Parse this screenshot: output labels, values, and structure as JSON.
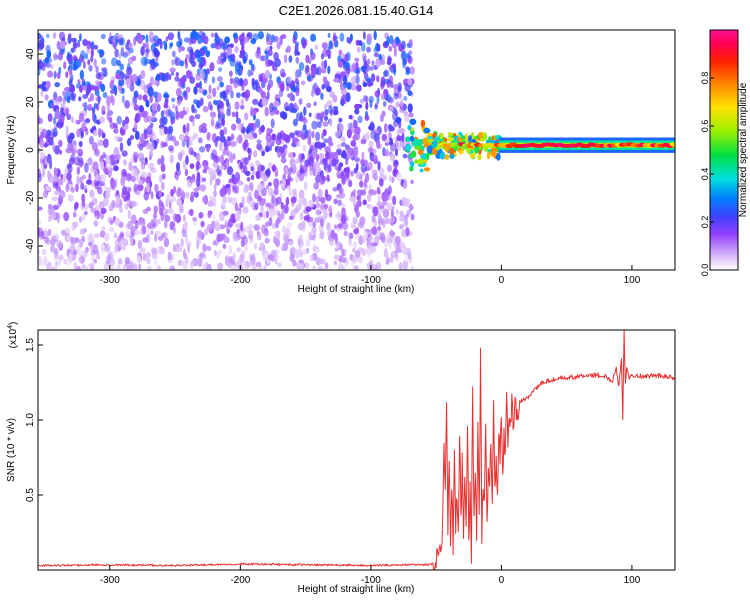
{
  "figure_title": "C2E1.2026.081.15.40.G14",
  "chart_data": [
    {
      "type": "heatmap",
      "title": "C2E1.2026.081.15.40.G14",
      "xlabel": "Height of straight line (km)",
      "ylabel": "Frequency (Hz)",
      "xlim": [
        -355,
        133
      ],
      "ylim": [
        -50,
        50
      ],
      "xticks": [
        -300,
        -200,
        -100,
        0,
        100
      ],
      "yticks": [
        -40,
        -20,
        0,
        20,
        40
      ],
      "grid": false,
      "colorbar": {
        "label": "Normalized spectral amplitude",
        "range": [
          0,
          1
        ],
        "ticks": [
          0.0,
          0.2,
          0.4,
          0.6,
          0.8
        ],
        "colors": [
          "#ffffff",
          "#d8b8f8",
          "#9040ff",
          "#4040ff",
          "#0080ff",
          "#00e0e0",
          "#00e040",
          "#a0f000",
          "#ffe000",
          "#ff8000",
          "#ff2000",
          "#ff0050",
          "#ff1090"
        ]
      },
      "regions": [
        {
          "name": "noise",
          "x_range": [
            -355,
            -68
          ],
          "y_range": [
            -50,
            48
          ],
          "amplitude_range": [
            0.0,
            0.3
          ]
        },
        {
          "name": "signal-line",
          "x_range": [
            -70,
            133
          ],
          "center_frequency_hz": 2,
          "amplitude_range": [
            0.3,
            1.0
          ]
        }
      ]
    },
    {
      "type": "line",
      "xlabel": "Height of straight line (km)",
      "ylabel": "SNR (10 * v/v)",
      "y_scale_label": "(x10",
      "y_scale_exponent": "4",
      "xlim": [
        -355,
        133
      ],
      "ylim": [
        0,
        1.6
      ],
      "xticks": [
        -300,
        -200,
        -100,
        0,
        100
      ],
      "yticks": [
        0.5,
        1.0,
        1.5
      ],
      "grid": false,
      "series": [
        {
          "color": "#e83030",
          "x": [
            -355,
            -300,
            -250,
            -200,
            -150,
            -100,
            -70,
            -55,
            -50,
            -47,
            -45,
            -44,
            -43,
            -42,
            -41,
            -40,
            -39,
            -38,
            -37,
            -36,
            -35,
            -34,
            -33,
            -32,
            -31,
            -30,
            -29,
            -28,
            -27,
            -26,
            -25,
            -24,
            -23,
            -22,
            -21,
            -20,
            -19,
            -18,
            -17,
            -16,
            -15,
            -14,
            -13,
            -12,
            -11,
            -10,
            -9,
            -8,
            -7,
            -6,
            -5,
            -4,
            -3,
            -2,
            -1,
            0,
            1,
            2,
            3,
            4,
            5,
            6,
            7,
            8,
            9,
            10,
            12,
            15,
            20,
            25,
            30,
            35,
            40,
            50,
            60,
            70,
            80,
            85,
            88,
            90,
            92,
            93,
            94,
            95,
            96,
            98,
            100,
            110,
            120,
            133
          ],
          "values": [
            0.03,
            0.035,
            0.03,
            0.04,
            0.035,
            0.03,
            0.035,
            0.035,
            0.05,
            0.15,
            0.3,
            0.9,
            0.5,
            1.12,
            0.25,
            0.75,
            0.2,
            0.6,
            0.15,
            0.8,
            0.25,
            0.55,
            0.2,
            0.95,
            0.35,
            0.7,
            0.15,
            0.6,
            0.25,
            1.05,
            0.2,
            0.55,
            0.12,
            1.3,
            0.3,
            0.65,
            0.2,
            0.9,
            0.35,
            1.45,
            0.2,
            0.6,
            0.45,
            1.0,
            0.3,
            0.7,
            0.55,
            0.9,
            0.4,
            1.05,
            0.5,
            0.8,
            0.45,
            0.95,
            0.7,
            1.1,
            0.55,
            0.95,
            0.75,
            1.1,
            0.8,
            1.05,
            0.95,
            1.15,
            0.9,
            1.1,
            1.05,
            1.12,
            1.15,
            1.2,
            1.24,
            1.26,
            1.27,
            1.28,
            1.29,
            1.3,
            1.29,
            1.26,
            1.35,
            1.22,
            1.42,
            1.0,
            1.6,
            1.25,
            1.35,
            1.28,
            1.3,
            1.29,
            1.3,
            1.28
          ]
        }
      ]
    }
  ]
}
